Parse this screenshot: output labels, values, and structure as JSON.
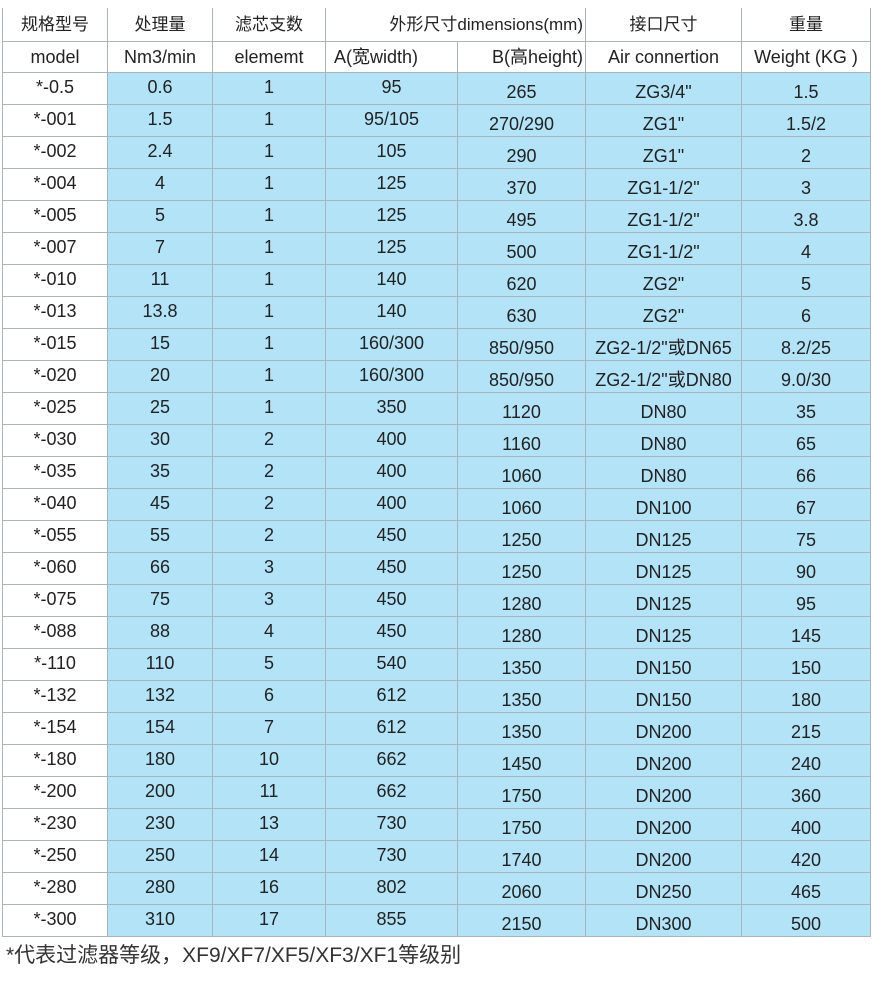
{
  "header": {
    "row1": [
      "规格型号",
      "处理量",
      "滤芯支数",
      "外形尺寸dimensions(mm)",
      "接口尺寸",
      "重量"
    ],
    "row2": [
      "model",
      "Nm3/min",
      "elememt",
      "A(宽width)",
      "B(高height)",
      "Air connertion",
      "Weight (KG )"
    ]
  },
  "rows": [
    [
      "*-0.5",
      "0.6",
      "1",
      "95",
      "265",
      "ZG3/4\"",
      "1.5"
    ],
    [
      "*-001",
      "1.5",
      "1",
      "95/105",
      "270/290",
      "ZG1\"",
      "1.5/2"
    ],
    [
      "*-002",
      "2.4",
      "1",
      "105",
      "290",
      "ZG1\"",
      "2"
    ],
    [
      "*-004",
      "4",
      "1",
      "125",
      "370",
      "ZG1-1/2\"",
      "3"
    ],
    [
      "*-005",
      "5",
      "1",
      "125",
      "495",
      "ZG1-1/2\"",
      "3.8"
    ],
    [
      "*-007",
      "7",
      "1",
      "125",
      "500",
      "ZG1-1/2\"",
      "4"
    ],
    [
      "*-010",
      "11",
      "1",
      "140",
      "620",
      "ZG2\"",
      "5"
    ],
    [
      "*-013",
      "13.8",
      "1",
      "140",
      "630",
      "ZG2\"",
      "6"
    ],
    [
      "*-015",
      "15",
      "1",
      "160/300",
      "850/950",
      "ZG2-1/2\"或DN65",
      "8.2/25"
    ],
    [
      "*-020",
      "20",
      "1",
      "160/300",
      "850/950",
      "ZG2-1/2\"或DN80",
      "9.0/30"
    ],
    [
      "*-025",
      "25",
      "1",
      "350",
      "1120",
      "DN80",
      "35"
    ],
    [
      "*-030",
      "30",
      "2",
      "400",
      "1160",
      "DN80",
      "65"
    ],
    [
      "*-035",
      "35",
      "2",
      "400",
      "1060",
      "DN80",
      "66"
    ],
    [
      "*-040",
      "45",
      "2",
      "400",
      "1060",
      "DN100",
      "67"
    ],
    [
      "*-055",
      "55",
      "2",
      "450",
      "1250",
      "DN125",
      "75"
    ],
    [
      "*-060",
      "66",
      "3",
      "450",
      "1250",
      "DN125",
      "90"
    ],
    [
      "*-075",
      "75",
      "3",
      "450",
      "1280",
      "DN125",
      "95"
    ],
    [
      "*-088",
      "88",
      "4",
      "450",
      "1280",
      "DN125",
      "145"
    ],
    [
      "*-110",
      "110",
      "5",
      "540",
      "1350",
      "DN150",
      "150"
    ],
    [
      "*-132",
      "132",
      "6",
      "612",
      "1350",
      "DN150",
      "180"
    ],
    [
      "*-154",
      "154",
      "7",
      "612",
      "1350",
      "DN200",
      "215"
    ],
    [
      "*-180",
      "180",
      "10",
      "662",
      "1450",
      "DN200",
      "240"
    ],
    [
      "*-200",
      "200",
      "11",
      "662",
      "1750",
      "DN200",
      "360"
    ],
    [
      "*-230",
      "230",
      "13",
      "730",
      "1750",
      "DN200",
      "400"
    ],
    [
      "*-250",
      "250",
      "14",
      "730",
      "1740",
      "DN200",
      "420"
    ],
    [
      "*-280",
      "280",
      "16",
      "802",
      "2060",
      "DN250",
      "465"
    ],
    [
      "*-300",
      "310",
      "17",
      "855",
      "2150",
      "DN300",
      "500"
    ]
  ],
  "footnote": "*代表过滤器等级，XF9/XF7/XF5/XF3/XF1等级别",
  "colors": {
    "cell_fill": "#b3e3f7",
    "border": "#a9b4bc"
  }
}
